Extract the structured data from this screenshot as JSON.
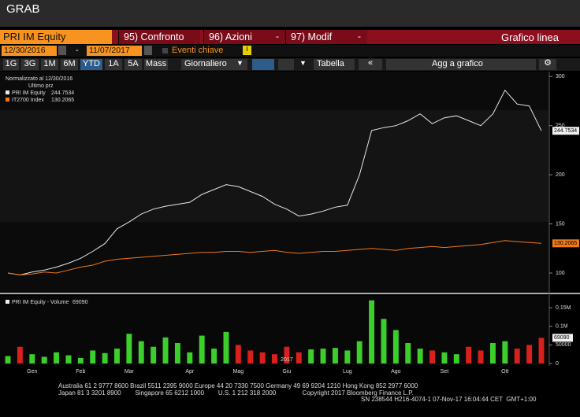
{
  "header": {
    "title": "GRAB"
  },
  "toolbar": {
    "security": "PRI IM Equity",
    "menus": [
      "95) Confronto",
      "96) Azioni",
      "97) Modif"
    ],
    "chart_kind": "Grafico linea"
  },
  "range_bar": {
    "start": "12/30/2016",
    "separator": "-",
    "end": "11/07/2017",
    "events": "Eventi chiave"
  },
  "buttons": {
    "periods": [
      "1G",
      "3G",
      "1M",
      "6M",
      "YTD",
      "1A",
      "5A",
      "Mass"
    ],
    "selected": "YTD",
    "frequency": "Giornaliero",
    "table": "Tabella",
    "add": "Agg a grafico"
  },
  "chart_data": [
    {
      "type": "line",
      "subtitle": "Normalizzato al 12/30/2016",
      "legend_title": "Ultimo prz",
      "series": [
        {
          "name": "PRI IM Equity",
          "color": "#e8e8e8",
          "values": [
            100,
            98,
            101,
            103,
            106,
            110,
            115,
            122,
            130,
            145,
            152,
            160,
            165,
            168,
            170,
            172,
            180,
            185,
            190,
            188,
            183,
            178,
            170,
            165,
            158,
            160,
            163,
            167,
            169,
            200,
            245,
            248,
            250,
            255,
            262,
            252,
            258,
            260,
            255,
            250,
            262,
            286,
            272,
            270,
            244.7534
          ]
        },
        {
          "name": "IT2700 Index",
          "color": "#f07a1a",
          "values": [
            100,
            98,
            99,
            101,
            100,
            103,
            106,
            108,
            112,
            114,
            115,
            116,
            117,
            118,
            119,
            120,
            121,
            121,
            122,
            122,
            121,
            122,
            123,
            121,
            120,
            121,
            122,
            122,
            123,
            124,
            125,
            124,
            123,
            125,
            126,
            127,
            126,
            127,
            128,
            129,
            131,
            133,
            132,
            131,
            130.2065
          ]
        }
      ],
      "ylim": [
        80,
        305
      ],
      "yticks": [
        100,
        150,
        200,
        250,
        300
      ]
    },
    {
      "type": "bar",
      "title": "PRI IM Equity - Volume",
      "categories": [
        null,
        null,
        "Gen",
        null,
        null,
        null,
        "Feb",
        null,
        null,
        null,
        "Mar",
        null,
        null,
        null,
        null,
        "Apr",
        null,
        null,
        null,
        "Mag",
        null,
        null,
        null,
        "Giu",
        null,
        null,
        null,
        null,
        "Lug",
        null,
        null,
        null,
        "Ago",
        null,
        null,
        null,
        "Set",
        null,
        null,
        null,
        null,
        "Ott",
        null,
        null,
        null
      ],
      "year_label": "2017",
      "values": [
        20000,
        45000,
        25000,
        18000,
        30000,
        22000,
        15000,
        35000,
        28000,
        40000,
        80000,
        60000,
        45000,
        70000,
        55000,
        30000,
        75000,
        40000,
        85000,
        50000,
        35000,
        30000,
        25000,
        45000,
        30000,
        38000,
        40000,
        42000,
        35000,
        60000,
        170000,
        120000,
        90000,
        55000,
        40000,
        35000,
        30000,
        25000,
        45000,
        35000,
        55000,
        60000,
        40000,
        50000,
        69090
      ],
      "up_color": "#3ccf2c",
      "down_color": "#d8201c",
      "ylim": [
        0,
        180000
      ],
      "yticks": [
        0,
        50000,
        {
          "value": 100000,
          "label": "0.1M"
        },
        {
          "value": 150000,
          "label": "0.15M"
        }
      ]
    }
  ],
  "footer": {
    "lines": [
      "Australia 61 2 9777 8600 Brazil 5511 2395 9000 Europe 44 20 7330 7500 Germany 49 69 9204 1210 Hong Kong 852 2977 6000",
      "Japan 81 3 3201 8900        Singapore 65 6212 1000        U.S. 1 212 318 2000               Copyright 2017 Bloomberg Finance L.P.",
      "SN 238544 H216-4074-1 07-Nov-17 16:04:44 CET  GMT+1:00"
    ]
  }
}
